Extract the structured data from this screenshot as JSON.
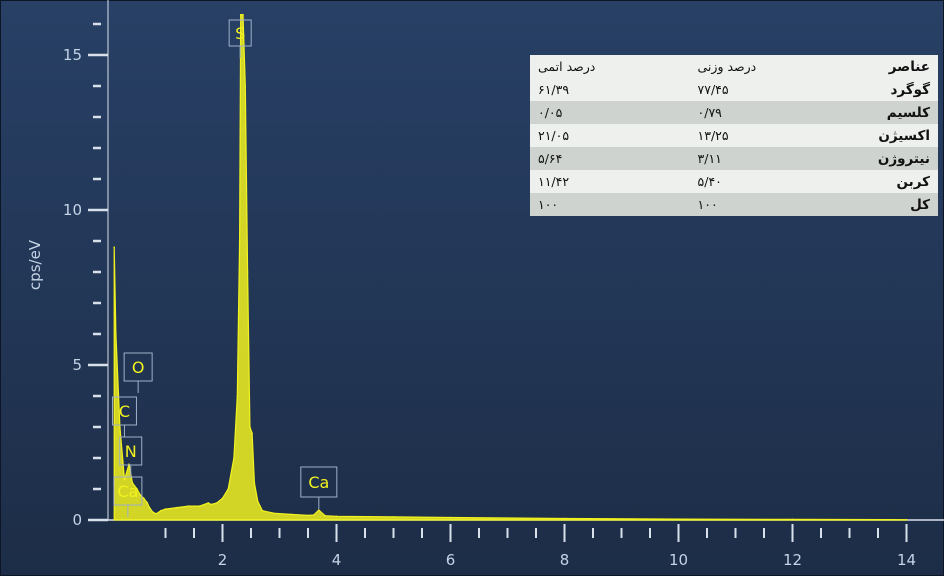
{
  "chart_data": {
    "type": "line",
    "title": "",
    "xlabel": "",
    "ylabel": "cps/eV",
    "xlim": [
      -1.75,
      14.25
    ],
    "ylim": [
      -0.5,
      16.3
    ],
    "x_ticks": [
      "2",
      "4",
      "6",
      "8",
      "10",
      "12",
      "14"
    ],
    "y_ticks": [
      "0",
      "5",
      "10",
      "15"
    ],
    "series": [
      {
        "x": [
          0.1,
          0.13,
          0.2,
          0.28,
          0.36,
          0.42,
          0.5,
          0.56,
          0.62,
          0.68,
          0.72,
          0.78,
          0.84,
          0.92,
          1.0,
          1.2,
          1.4,
          1.6,
          1.75,
          1.8,
          1.9,
          2.0,
          2.1,
          2.2,
          2.26,
          2.3,
          2.32,
          2.36,
          2.4,
          2.44,
          2.48,
          2.52,
          2.56,
          2.62,
          2.7,
          2.9,
          3.2,
          3.5,
          3.6,
          3.69,
          3.8,
          4.0,
          5.0,
          6.0,
          8.0,
          10.0,
          12.0,
          14.0
        ],
        "y": [
          8.8,
          6.0,
          3.0,
          1.3,
          1.8,
          1.2,
          1.0,
          0.8,
          0.7,
          0.55,
          0.4,
          0.25,
          0.2,
          0.3,
          0.35,
          0.4,
          0.45,
          0.45,
          0.55,
          0.5,
          0.55,
          0.7,
          1.0,
          2.0,
          4.0,
          9.0,
          16.3,
          16.3,
          14.0,
          8.0,
          3.0,
          2.8,
          1.2,
          0.6,
          0.3,
          0.22,
          0.18,
          0.15,
          0.16,
          0.32,
          0.14,
          0.12,
          0.1,
          0.08,
          0.05,
          0.03,
          0.02,
          0.01
        ]
      }
    ],
    "annotations": [
      {
        "label": "S",
        "x": 2.31
      },
      {
        "label": "O",
        "x": 0.52
      },
      {
        "label": "C",
        "x": 0.28
      },
      {
        "label": "N",
        "x": 0.39
      },
      {
        "label": "Ca",
        "x": 0.34
      },
      {
        "label": "Ca",
        "x": 3.69
      }
    ],
    "table": {
      "columns": [
        "عناصر",
        "درصد وزنی",
        "درصد اتمی"
      ],
      "rows": [
        [
          "گوگرد",
          "۷۷/۴۵",
          "۶۱/۳۹"
        ],
        [
          "کلسیم",
          "۰/۷۹",
          "۰/۰۵"
        ],
        [
          "اکسیژن",
          "۱۳/۲۵",
          "۲۱/۰۵"
        ],
        [
          "نیتروژن",
          "۳/۱۱",
          "۵/۶۴"
        ],
        [
          "کربن",
          "۵/۴۰",
          "۱۱/۴۲"
        ],
        [
          "کل",
          "۱۰۰",
          "۱۰۰"
        ]
      ]
    }
  },
  "colors": {
    "background_top": "#284066",
    "background_bottom": "#1d2d47",
    "spectrum": "#f2f21e",
    "axis": "#d8e0ea",
    "tick_text": "#c5d3e6"
  }
}
